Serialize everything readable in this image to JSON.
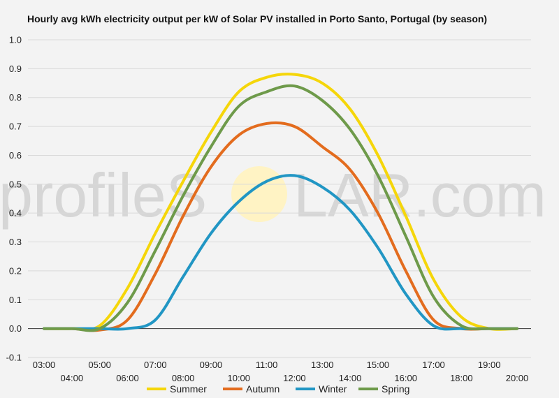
{
  "watermark": {
    "text_left": "profileS",
    "text_right": "LAR.com",
    "sun_color": "#fff3c4"
  },
  "chart_data": {
    "type": "line",
    "title": "Hourly avg kWh electricity output per kW of Solar PV installed in Porto Santo, Portugal (by season)",
    "xlabel": "",
    "ylabel": "",
    "x": [
      "03:00",
      "04:00",
      "05:00",
      "06:00",
      "07:00",
      "08:00",
      "09:00",
      "10:00",
      "11:00",
      "12:00",
      "13:00",
      "14:00",
      "15:00",
      "16:00",
      "17:00",
      "18:00",
      "19:00",
      "20:00"
    ],
    "x_labels_top": [
      "03:00",
      "05:00",
      "07:00",
      "09:00",
      "11:00",
      "13:00",
      "15:00",
      "17:00",
      "19:00"
    ],
    "x_labels_bottom": [
      "04:00",
      "06:00",
      "08:00",
      "10:00",
      "12:00",
      "14:00",
      "16:00",
      "18:00",
      "20:00"
    ],
    "ylim": [
      -0.1,
      1.0
    ],
    "yticks": [
      "-0.1",
      "0.0",
      "0.1",
      "0.2",
      "0.3",
      "0.4",
      "0.5",
      "0.6",
      "0.7",
      "0.8",
      "0.9",
      "1.0"
    ],
    "grid": true,
    "legend_position": "bottom",
    "series": [
      {
        "name": "Summer",
        "color": "#f5d60a",
        "values": [
          0.0,
          0.0,
          0.01,
          0.14,
          0.33,
          0.51,
          0.68,
          0.82,
          0.87,
          0.88,
          0.85,
          0.76,
          0.6,
          0.39,
          0.17,
          0.04,
          0.0,
          0.0
        ]
      },
      {
        "name": "Autumn",
        "color": "#e36c1e",
        "values": [
          0.0,
          0.0,
          -0.005,
          0.03,
          0.19,
          0.39,
          0.56,
          0.67,
          0.71,
          0.7,
          0.63,
          0.55,
          0.4,
          0.2,
          0.03,
          0.0,
          0.0,
          0.0
        ]
      },
      {
        "name": "Winter",
        "color": "#2196c4",
        "values": [
          0.0,
          0.0,
          0.0,
          0.0,
          0.03,
          0.18,
          0.33,
          0.44,
          0.51,
          0.53,
          0.49,
          0.41,
          0.28,
          0.12,
          0.01,
          0.0,
          0.0,
          0.0
        ]
      },
      {
        "name": "Spring",
        "color": "#6e9a4a",
        "values": [
          0.0,
          0.0,
          0.0,
          0.09,
          0.27,
          0.46,
          0.63,
          0.77,
          0.82,
          0.84,
          0.79,
          0.69,
          0.53,
          0.32,
          0.11,
          0.01,
          0.0,
          0.0
        ]
      }
    ]
  }
}
